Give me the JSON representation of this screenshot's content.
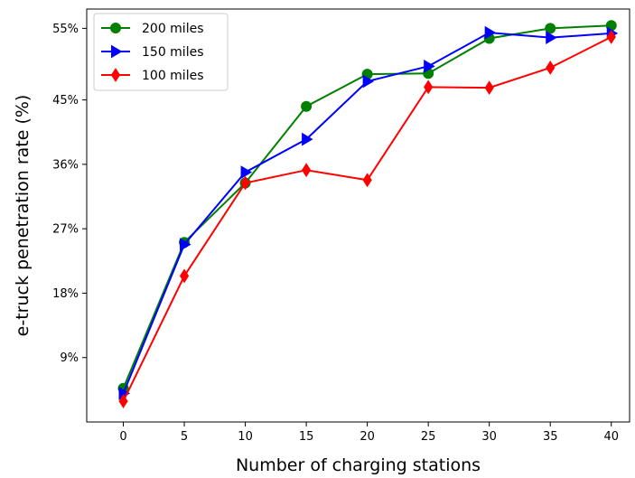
{
  "chart_data": {
    "type": "line",
    "title": "",
    "xlabel": "Number of charging stations",
    "ylabel": "e-truck penetration rate (%)",
    "x": [
      0,
      5,
      10,
      15,
      20,
      25,
      30,
      35,
      40
    ],
    "x_ticks": [
      "0",
      "5",
      "10",
      "15",
      "20",
      "25",
      "30",
      "35",
      "40"
    ],
    "y_tick_values": [
      9,
      18,
      27,
      36,
      45,
      55
    ],
    "y_ticks": [
      "9%",
      "18%",
      "27%",
      "36%",
      "45%",
      "55%"
    ],
    "xlim": [
      -3,
      41.5
    ],
    "ylim": [
      0,
      57.7
    ],
    "grid": false,
    "legend_position": "upper-left",
    "series": [
      {
        "name": "200 miles",
        "color": "#008000",
        "marker": "circle",
        "values": [
          4.7,
          25.1,
          33.4,
          44.1,
          48.6,
          48.7,
          53.6,
          55.0,
          55.4
        ]
      },
      {
        "name": "150 miles",
        "color": "#0000ff",
        "marker": "triangle-right",
        "values": [
          4.0,
          24.8,
          34.9,
          39.5,
          47.6,
          49.7,
          54.4,
          53.7,
          54.3
        ]
      },
      {
        "name": "100 miles",
        "color": "#ff0000",
        "marker": "diamond",
        "values": [
          2.9,
          20.4,
          33.4,
          35.2,
          33.8,
          46.8,
          46.7,
          49.5,
          53.8
        ]
      }
    ]
  }
}
